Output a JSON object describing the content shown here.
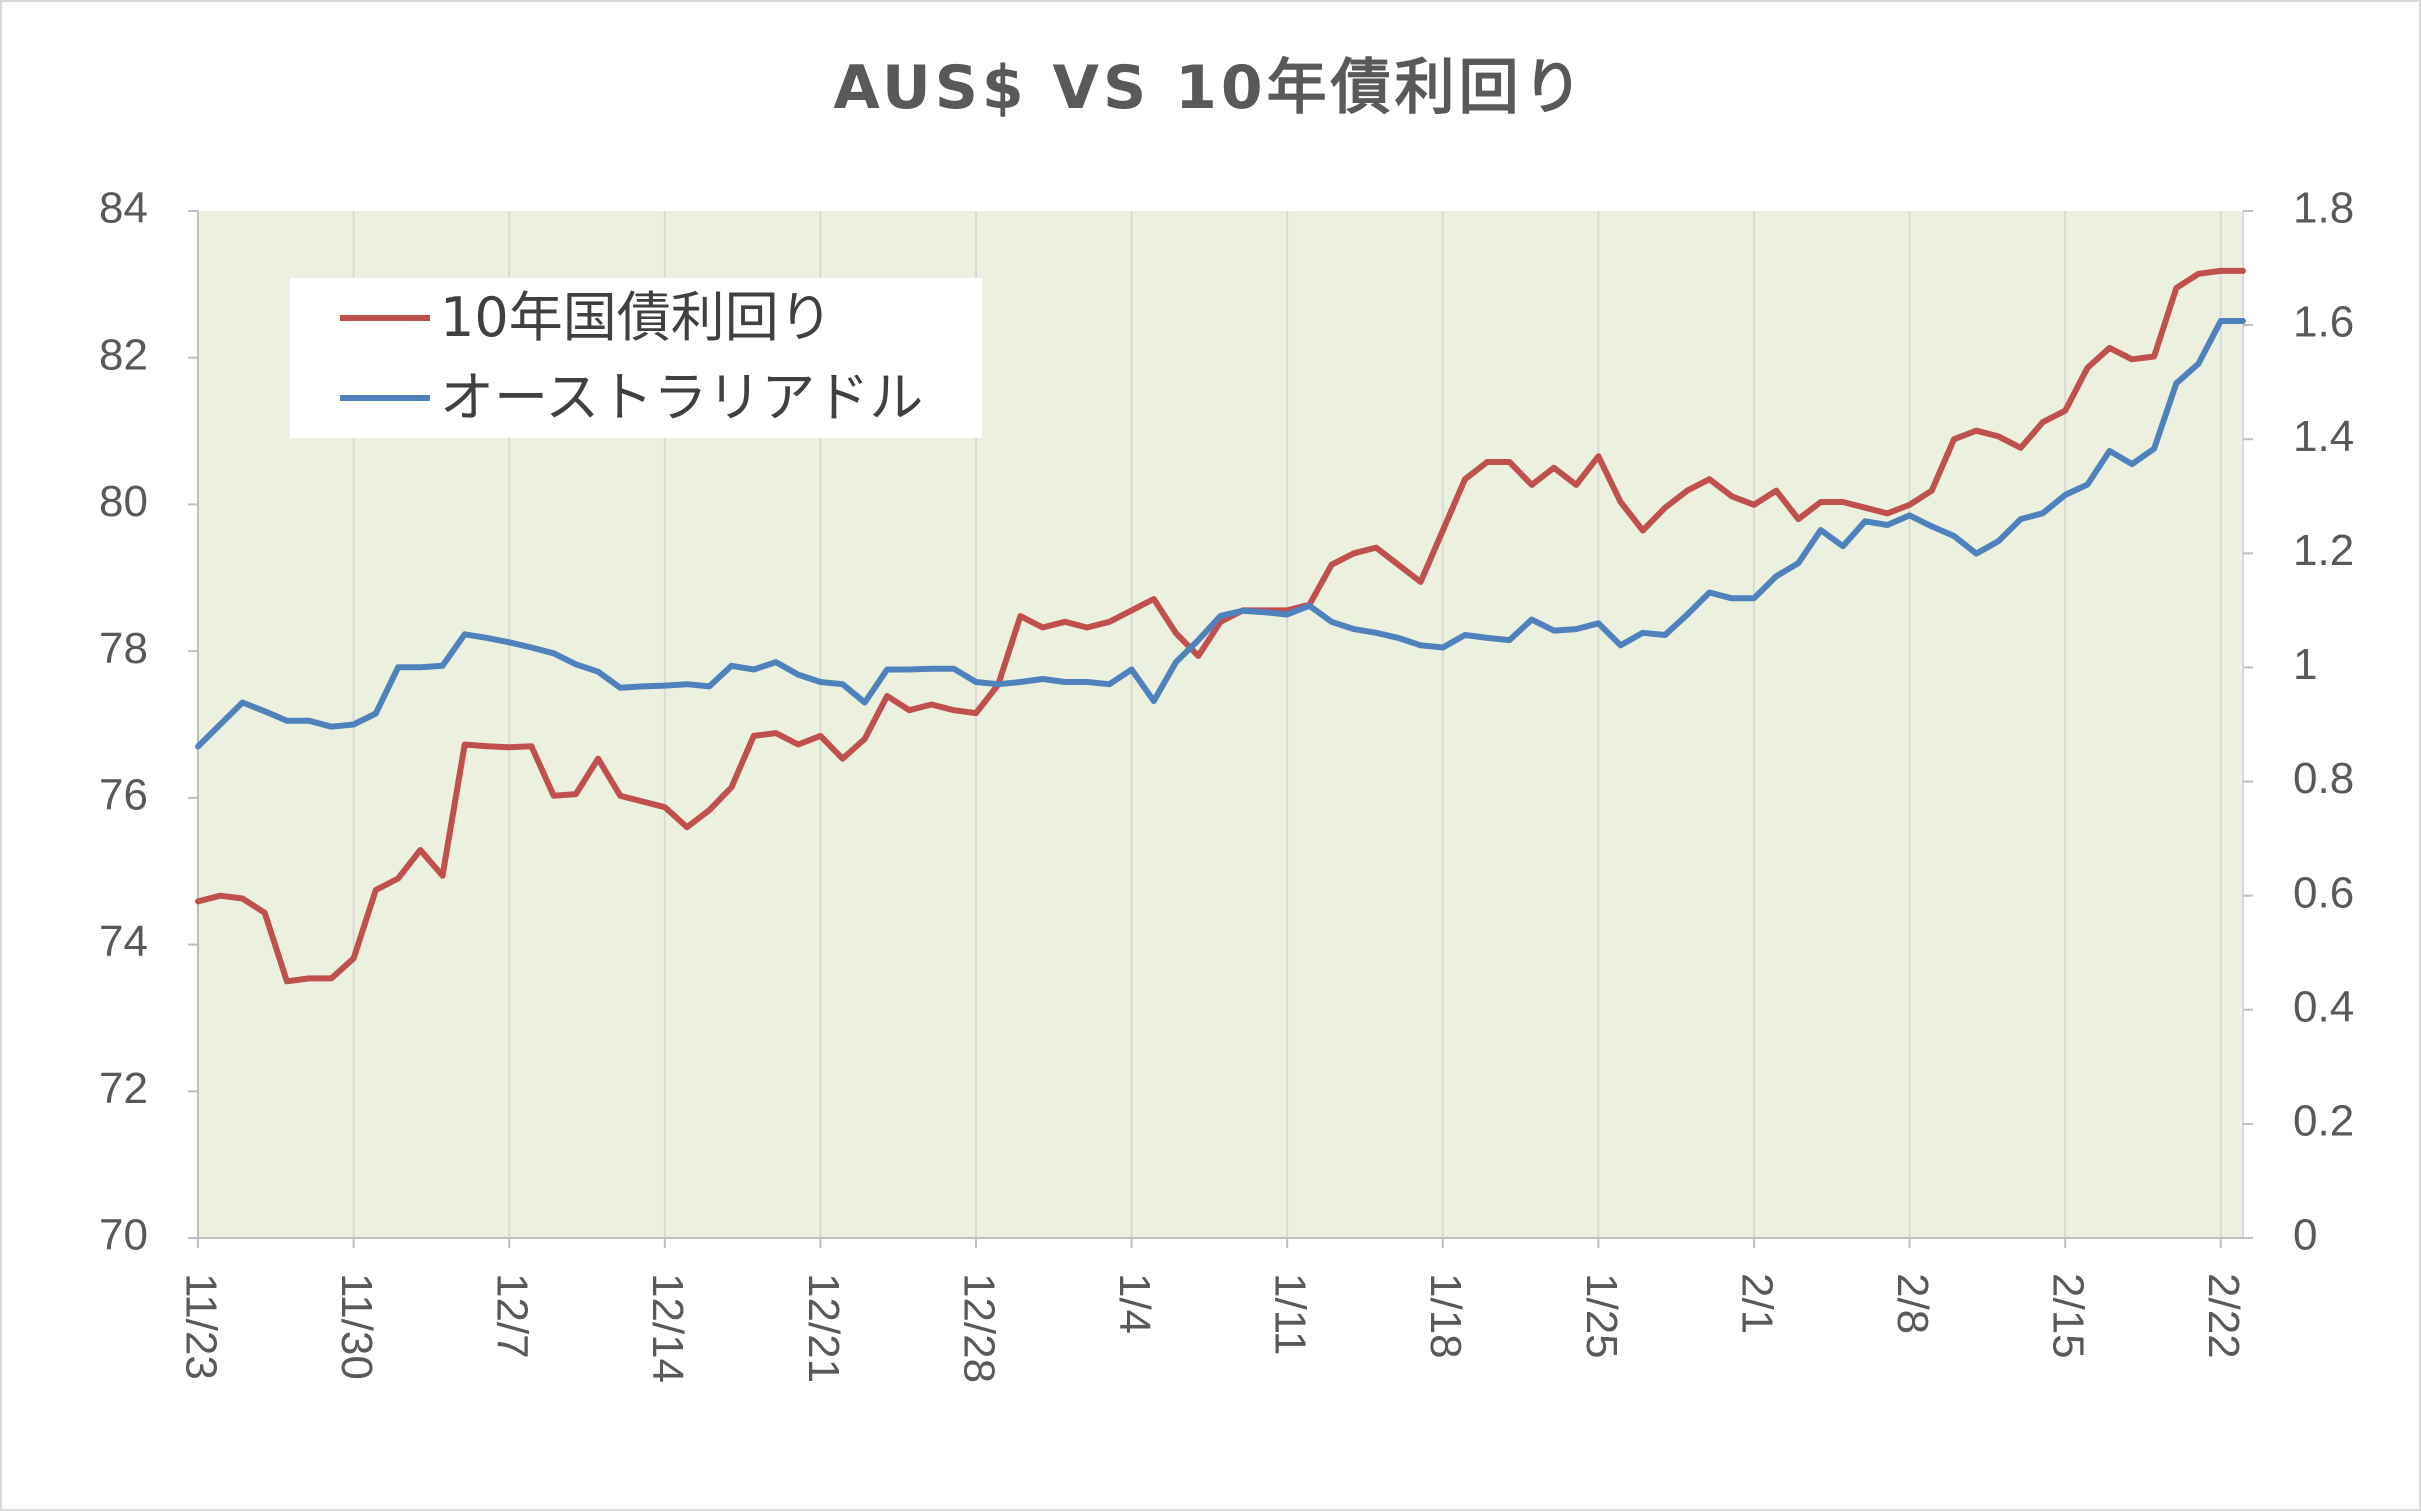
{
  "chart_data": {
    "type": "line",
    "title": "AUS$ VS 10年債利回り",
    "xlabel": "",
    "ylabel": "",
    "y2label": "",
    "x_ticks": [
      "11/23",
      "11/30",
      "12/7",
      "12/14",
      "12/21",
      "12/28",
      "1/4",
      "1/11",
      "1/18",
      "1/25",
      "2/1",
      "2/8",
      "2/15",
      "2/22"
    ],
    "y_left": {
      "ylim": [
        70,
        84
      ],
      "ticks": [
        "70",
        "72",
        "74",
        "76",
        "78",
        "80",
        "82",
        "84"
      ]
    },
    "y_right": {
      "ylim": [
        0,
        1.8
      ],
      "ticks": [
        "0",
        "0.2",
        "0.4",
        "0.6",
        "0.8",
        "1",
        "1.2",
        "1.4",
        "1.6",
        "1.8"
      ]
    },
    "x_range": [
      0,
      92
    ],
    "grid": "vertical",
    "plot_background": "#ebf1de",
    "legend_position": "top-left",
    "series": [
      {
        "name": "10年国債利回り",
        "axis": "right",
        "color": "#c0504d",
        "x": [
          0,
          1,
          2,
          3,
          4,
          5,
          6,
          7,
          8,
          9,
          10,
          11,
          12,
          13,
          14,
          15,
          16,
          17,
          18,
          19,
          20,
          21,
          22,
          23,
          24,
          25,
          26,
          27,
          28,
          29,
          30,
          31,
          32,
          33,
          34,
          35,
          36,
          37,
          38,
          39,
          40,
          41,
          42,
          43,
          44,
          45,
          46,
          47,
          48,
          49,
          50,
          51,
          52,
          53,
          54,
          55,
          56,
          57,
          58,
          59,
          60,
          61,
          62,
          63,
          64,
          65,
          66,
          67,
          68,
          69,
          70,
          71,
          72,
          73,
          74,
          75,
          76,
          77,
          78,
          79,
          80,
          81,
          82,
          83,
          84,
          85,
          86,
          87,
          88,
          89,
          90,
          91,
          92
        ],
        "values": [
          0.59,
          0.6,
          0.595,
          0.57,
          0.45,
          0.455,
          0.455,
          0.49,
          0.61,
          0.63,
          0.68,
          0.635,
          0.865,
          0.862,
          0.86,
          0.862,
          0.775,
          0.778,
          0.84,
          0.775,
          0.765,
          0.755,
          0.72,
          0.75,
          0.79,
          0.88,
          0.885,
          0.865,
          0.88,
          0.84,
          0.875,
          0.95,
          0.925,
          0.935,
          0.925,
          0.92,
          0.97,
          1.09,
          1.07,
          1.08,
          1.07,
          1.08,
          1.1,
          1.12,
          1.06,
          1.02,
          1.08,
          1.1,
          1.1,
          1.1,
          1.11,
          1.18,
          1.2,
          1.21,
          1.18,
          1.15,
          1.24,
          1.33,
          1.36,
          1.36,
          1.32,
          1.35,
          1.32,
          1.37,
          1.29,
          1.24,
          1.28,
          1.31,
          1.33,
          1.3,
          1.285,
          1.31,
          1.26,
          1.29,
          1.29,
          1.28,
          1.27,
          1.285,
          1.31,
          1.4,
          1.415,
          1.405,
          1.385,
          1.43,
          1.45,
          1.525,
          1.56,
          1.54,
          1.545,
          1.665,
          1.69,
          1.695,
          1.695
        ]
      },
      {
        "name": "オーストラリアドル",
        "axis": "left",
        "color": "#4f81bd",
        "x": [
          0,
          1,
          2,
          3,
          4,
          5,
          6,
          7,
          8,
          9,
          10,
          11,
          12,
          13,
          14,
          15,
          16,
          17,
          18,
          19,
          20,
          21,
          22,
          23,
          24,
          25,
          26,
          27,
          28,
          29,
          30,
          31,
          32,
          33,
          34,
          35,
          36,
          37,
          38,
          39,
          40,
          41,
          42,
          43,
          44,
          45,
          46,
          47,
          48,
          49,
          50,
          51,
          52,
          53,
          54,
          55,
          56,
          57,
          58,
          59,
          60,
          61,
          62,
          63,
          64,
          65,
          66,
          67,
          68,
          69,
          70,
          71,
          72,
          73,
          74,
          75,
          76,
          77,
          78,
          79,
          80,
          81,
          82,
          83,
          84,
          85,
          86,
          87,
          88,
          89,
          90,
          91,
          92
        ],
        "values": [
          76.7,
          77.0,
          77.3,
          77.18,
          77.05,
          77.05,
          76.97,
          77.0,
          77.15,
          77.78,
          77.78,
          77.8,
          78.23,
          78.18,
          78.12,
          78.05,
          77.97,
          77.82,
          77.72,
          77.5,
          77.52,
          77.53,
          77.55,
          77.52,
          77.8,
          77.75,
          77.85,
          77.68,
          77.58,
          77.55,
          77.3,
          77.75,
          77.75,
          77.76,
          77.76,
          77.58,
          77.55,
          77.58,
          77.62,
          77.58,
          77.58,
          77.55,
          77.75,
          77.32,
          77.85,
          78.15,
          78.48,
          78.55,
          78.53,
          78.5,
          78.62,
          78.4,
          78.3,
          78.25,
          78.18,
          78.08,
          78.05,
          78.22,
          78.18,
          78.15,
          78.43,
          78.28,
          78.3,
          78.38,
          78.08,
          78.25,
          78.22,
          78.5,
          78.8,
          78.72,
          78.72,
          79.02,
          79.2,
          79.65,
          79.43,
          79.77,
          79.72,
          79.85,
          79.7,
          79.57,
          79.33,
          79.5,
          79.8,
          79.88,
          80.13,
          80.27,
          80.73,
          80.55,
          80.76,
          81.65,
          81.92,
          82.5,
          82.5
        ]
      }
    ]
  }
}
